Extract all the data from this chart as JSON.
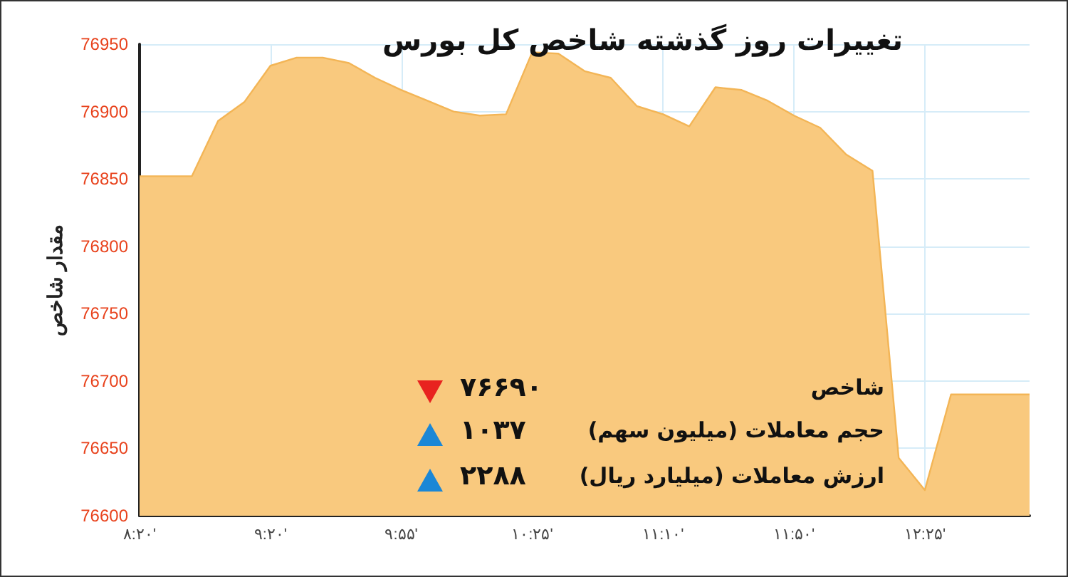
{
  "chart_data": {
    "type": "area",
    "title": "تغییرات روز گذشته شاخص کل بورس",
    "ylabel": "مقدار شاخص",
    "categories": [
      "۸:۲۰'",
      null,
      null,
      null,
      null,
      "۹:۲۰'",
      null,
      null,
      null,
      null,
      "۹:۵۵'",
      null,
      null,
      null,
      null,
      "۱۰:۲۵'",
      null,
      null,
      null,
      null,
      "۱۱:۱۰'",
      null,
      null,
      null,
      null,
      "۱۱:۵۰'",
      null,
      null,
      null,
      null,
      "۱۲:۲۵'",
      null,
      null,
      null,
      null
    ],
    "series": [
      {
        "color": "#f9c97e",
        "values": [
          76852,
          76852,
          76852,
          76893,
          76907,
          76934,
          76940,
          76940,
          76936,
          76925,
          76916,
          76908,
          76900,
          76897,
          76898,
          76944,
          76943,
          76930,
          76925,
          76904,
          76898,
          76889,
          76918,
          76916,
          76908,
          76897,
          76888,
          76868,
          76856,
          76643,
          76619,
          76690,
          76690,
          76690,
          76690
        ]
      }
    ],
    "ylim": [
      76600,
      76950
    ],
    "yticks": [
      76600,
      76650,
      76700,
      76750,
      76800,
      76850,
      76900,
      76950
    ],
    "grid": true,
    "marker": "none",
    "annotations": [
      "شاخص",
      "۷۶۶۹۰",
      "حجم معاملات (میلیون سهم)",
      "۱۰۳۷",
      "ارزش معاملات (میلیارد ریال)",
      "۲۲۸۸"
    ]
  }
}
